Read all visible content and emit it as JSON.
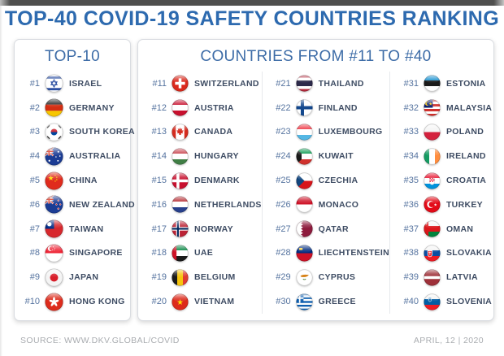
{
  "title": "TOP-40 COVID-19 SAFETY COUNTRIES RANKING",
  "top10": {
    "header": "TOP-10",
    "items": [
      {
        "rank": "#1",
        "name": "ISRAEL",
        "flag": "israel"
      },
      {
        "rank": "#2",
        "name": "GERMANY",
        "flag": "germany"
      },
      {
        "rank": "#3",
        "name": "SOUTH KOREA",
        "flag": "south_korea"
      },
      {
        "rank": "#4",
        "name": "AUSTRALIA",
        "flag": "australia"
      },
      {
        "rank": "#5",
        "name": "CHINA",
        "flag": "china"
      },
      {
        "rank": "#6",
        "name": "NEW ZEALAND",
        "flag": "new_zealand"
      },
      {
        "rank": "#7",
        "name": "TAIWAN",
        "flag": "taiwan"
      },
      {
        "rank": "#8",
        "name": "SINGAPORE",
        "flag": "singapore"
      },
      {
        "rank": "#9",
        "name": "JAPAN",
        "flag": "japan"
      },
      {
        "rank": "#10",
        "name": "HONG KONG",
        "flag": "hong_kong"
      }
    ]
  },
  "rest": {
    "header": "COUNTRIES FROM #11 TO #40",
    "columns": [
      {
        "items": [
          {
            "rank": "#11",
            "name": "SWITZERLAND",
            "flag": "switzerland"
          },
          {
            "rank": "#12",
            "name": "AUSTRIA",
            "flag": "austria"
          },
          {
            "rank": "#13",
            "name": "CANADA",
            "flag": "canada"
          },
          {
            "rank": "#14",
            "name": "HUNGARY",
            "flag": "hungary"
          },
          {
            "rank": "#15",
            "name": "DENMARK",
            "flag": "denmark"
          },
          {
            "rank": "#16",
            "name": "NETHERLANDS",
            "flag": "netherlands"
          },
          {
            "rank": "#17",
            "name": "NORWAY",
            "flag": "norway"
          },
          {
            "rank": "#18",
            "name": "UAE",
            "flag": "uae"
          },
          {
            "rank": "#19",
            "name": "BELGIUM",
            "flag": "belgium"
          },
          {
            "rank": "#20",
            "name": "VIETNAM",
            "flag": "vietnam"
          }
        ]
      },
      {
        "items": [
          {
            "rank": "#21",
            "name": "THAILAND",
            "flag": "thailand"
          },
          {
            "rank": "#22",
            "name": "FINLAND",
            "flag": "finland"
          },
          {
            "rank": "#23",
            "name": "LUXEMBOURG",
            "flag": "luxembourg"
          },
          {
            "rank": "#24",
            "name": "KUWAIT",
            "flag": "kuwait"
          },
          {
            "rank": "#25",
            "name": "CZECHIA",
            "flag": "czechia"
          },
          {
            "rank": "#26",
            "name": "MONACO",
            "flag": "monaco"
          },
          {
            "rank": "#27",
            "name": "QATAR",
            "flag": "qatar"
          },
          {
            "rank": "#28",
            "name": "LIECHTENSTEIN",
            "flag": "liechtenstein"
          },
          {
            "rank": "#29",
            "name": "CYPRUS",
            "flag": "cyprus"
          },
          {
            "rank": "#30",
            "name": "GREECE",
            "flag": "greece"
          }
        ]
      },
      {
        "items": [
          {
            "rank": "#31",
            "name": "ESTONIA",
            "flag": "estonia"
          },
          {
            "rank": "#32",
            "name": "MALAYSIA",
            "flag": "malaysia"
          },
          {
            "rank": "#33",
            "name": "POLAND",
            "flag": "poland"
          },
          {
            "rank": "#34",
            "name": "IRELAND",
            "flag": "ireland"
          },
          {
            "rank": "#35",
            "name": "CROATIA",
            "flag": "croatia"
          },
          {
            "rank": "#36",
            "name": "TURKEY",
            "flag": "turkey"
          },
          {
            "rank": "#37",
            "name": "OMAN",
            "flag": "oman"
          },
          {
            "rank": "#38",
            "name": "SLOVAKIA",
            "flag": "slovakia"
          },
          {
            "rank": "#39",
            "name": "LATVIA",
            "flag": "latvia"
          },
          {
            "rank": "#40",
            "name": "SLOVENIA",
            "flag": "slovenia"
          }
        ]
      }
    ]
  },
  "footer": {
    "source": "SOURCE: WWW.DKV.GLOBAL/COVID",
    "date": "APRIL, 12 | 2020"
  },
  "colors": {
    "title": "#2d6aaf",
    "box_header": "#3d6ca7",
    "rank": "#55739f",
    "country": "#3e4c63",
    "footer_text": "#a9acb0",
    "border": "#d9dce1"
  }
}
